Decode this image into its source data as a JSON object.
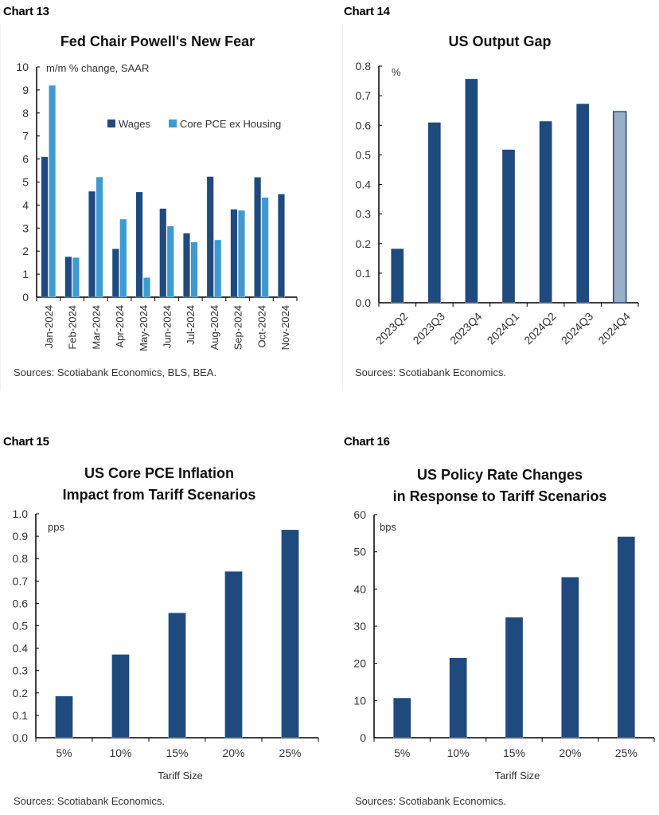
{
  "colors": {
    "dark_blue": "#1f4a7e",
    "light_blue": "#3e9bd2",
    "projection": "#9aaec8",
    "axis": "#000000"
  },
  "chart_data": [
    {
      "id": "chart13",
      "label": "Chart 13",
      "type": "bar",
      "title": "Fed Chair Powell's New Fear",
      "unit_label": "m/m % change, SAAR",
      "xlabel": "",
      "ylabel": "",
      "ylim": [
        0,
        10
      ],
      "yticks": [
        "0",
        "1",
        "2",
        "3",
        "4",
        "5",
        "6",
        "7",
        "8",
        "9",
        "10"
      ],
      "categories": [
        "Jan-2024",
        "Feb-2024",
        "Mar-2024",
        "Apr-2024",
        "May-2024",
        "Jun-2024",
        "Jul-2024",
        "Aug-2024",
        "Sep-2024",
        "Oct-2024",
        "Nov-2024"
      ],
      "series": [
        {
          "name": "Wages",
          "color": "#1f4a7e",
          "values": [
            6.1,
            1.76,
            4.6,
            2.1,
            4.57,
            3.85,
            2.78,
            5.24,
            3.82,
            5.21,
            4.48
          ]
        },
        {
          "name": "Core PCE ex Housing",
          "color": "#3e9bd2",
          "values": [
            9.2,
            1.72,
            5.22,
            3.39,
            0.85,
            3.09,
            2.39,
            2.49,
            3.77,
            4.33,
            null
          ]
        }
      ],
      "legend": "top-right",
      "grid": false,
      "source": "Sources: Scotiabank Economics, BLS, BEA."
    },
    {
      "id": "chart14",
      "label": "Chart 14",
      "type": "bar",
      "title": "US Output Gap",
      "unit_label": "%",
      "xlabel": "",
      "ylabel": "",
      "ylim": [
        0,
        0.8
      ],
      "yticks": [
        "0.0",
        "0.1",
        "0.2",
        "0.3",
        "0.4",
        "0.5",
        "0.6",
        "0.7",
        "0.8"
      ],
      "categories": [
        "2023Q2",
        "2023Q3",
        "2023Q4",
        "2024Q1",
        "2024Q2",
        "2024Q3",
        "2024Q4"
      ],
      "values": [
        0.183,
        0.61,
        0.757,
        0.518,
        0.614,
        0.673,
        0.646
      ],
      "highlighted_categories": [
        "2024Q4"
      ],
      "grid": false,
      "source": "Sources: Scotiabank Economics."
    },
    {
      "id": "chart15",
      "label": "Chart 15",
      "type": "bar",
      "title": "US Core PCE Inflation Impact from Tariff Scenarios",
      "title_lines": [
        "US Core PCE Inflation",
        "Impact from Tariff Scenarios"
      ],
      "unit_label": "pps",
      "xlabel": "Tariff Size",
      "ylabel": "",
      "ylim": [
        0,
        1.0
      ],
      "yticks": [
        "0.0",
        "0.1",
        "0.2",
        "0.3",
        "0.4",
        "0.5",
        "0.6",
        "0.7",
        "0.8",
        "0.9",
        "1.0"
      ],
      "categories": [
        "5%",
        "10%",
        "15%",
        "20%",
        "25%"
      ],
      "values": [
        0.186,
        0.372,
        0.558,
        0.743,
        0.929
      ],
      "grid": false,
      "source": "Sources: Scotiabank Economics."
    },
    {
      "id": "chart16",
      "label": "Chart 16",
      "type": "bar",
      "title": "US Policy Rate Changes in Response to Tariff Scenarios",
      "title_lines": [
        "US Policy Rate Changes",
        "in Response to Tariff Scenarios"
      ],
      "unit_label": "bps",
      "xlabel": "Tariff Size",
      "ylabel": "",
      "ylim": [
        0,
        60
      ],
      "yticks": [
        "0",
        "10",
        "20",
        "30",
        "40",
        "50",
        "60"
      ],
      "categories": [
        "5%",
        "10%",
        "15%",
        "20%",
        "25%"
      ],
      "values": [
        10.7,
        21.5,
        32.4,
        43.2,
        54.1
      ],
      "grid": false,
      "source": "Sources: Scotiabank Economics."
    }
  ]
}
